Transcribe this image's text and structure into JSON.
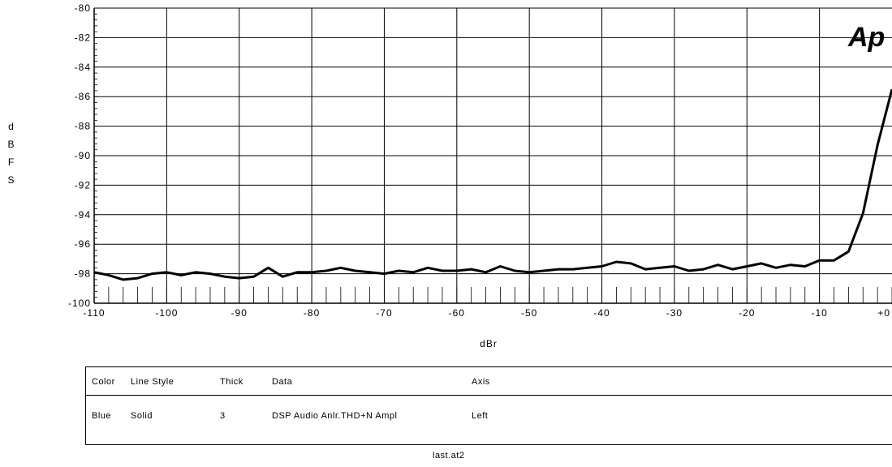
{
  "chart_data": {
    "type": "line",
    "xlabel": "dBr",
    "ylabel": "dBFS",
    "xlim": [
      -110,
      0
    ],
    "ylim": [
      -100,
      -80
    ],
    "x_ticks": [
      -110,
      -100,
      -90,
      -80,
      -70,
      -60,
      -50,
      -40,
      -30,
      -20,
      -10,
      0
    ],
    "x_tick_labels": [
      "-110",
      "-100",
      "-90",
      "-80",
      "-70",
      "-60",
      "-50",
      "-40",
      "-30",
      "-20",
      "-10",
      "+0"
    ],
    "y_ticks": [
      -80,
      -82,
      -84,
      -86,
      -88,
      -90,
      -92,
      -94,
      -96,
      -98,
      -100
    ],
    "y_tick_labels": [
      "-80",
      "-82",
      "-84",
      "-86",
      "-88",
      "-90",
      "-92",
      "-94",
      "-96",
      "-98",
      "-100"
    ],
    "grid": true,
    "series": [
      {
        "name": "DSP Audio Anlr.THD+N Ampl",
        "color": "#000000",
        "x": [
          -110,
          -108,
          -106,
          -104,
          -102,
          -100,
          -98,
          -96,
          -94,
          -92,
          -90,
          -88,
          -86,
          -84,
          -82,
          -80,
          -78,
          -76,
          -74,
          -72,
          -70,
          -68,
          -66,
          -64,
          -62,
          -60,
          -58,
          -56,
          -54,
          -52,
          -50,
          -48,
          -46,
          -44,
          -42,
          -40,
          -38,
          -36,
          -34,
          -32,
          -30,
          -28,
          -26,
          -24,
          -22,
          -20,
          -18,
          -16,
          -14,
          -12,
          -10,
          -8,
          -6,
          -4,
          -2,
          0
        ],
        "values": [
          -97.9,
          -98.1,
          -98.4,
          -98.3,
          -98.0,
          -97.9,
          -98.1,
          -97.9,
          -98.0,
          -98.2,
          -98.3,
          -98.2,
          -97.6,
          -98.2,
          -97.9,
          -97.9,
          -97.8,
          -97.6,
          -97.8,
          -97.9,
          -98.0,
          -97.8,
          -97.9,
          -97.6,
          -97.8,
          -97.8,
          -97.7,
          -97.9,
          -97.5,
          -97.8,
          -97.9,
          -97.8,
          -97.7,
          -97.7,
          -97.6,
          -97.5,
          -97.2,
          -97.3,
          -97.7,
          -97.6,
          -97.5,
          -97.8,
          -97.7,
          -97.4,
          -97.7,
          -97.5,
          -97.3,
          -97.6,
          -97.4,
          -97.5,
          -97.1,
          -97.1,
          -96.5,
          -93.9,
          -89.3,
          -85.5
        ]
      }
    ]
  },
  "logo_text": "Ap",
  "legend": {
    "headers": {
      "color": "Color",
      "line_style": "Line Style",
      "thick": "Thick",
      "data": "Data",
      "axis": "Axis"
    },
    "entries": [
      {
        "color": "Blue",
        "line_style": "Solid",
        "thick": "3",
        "data": "DSP Audio Anlr.THD+N Ampl",
        "axis": "Left"
      }
    ]
  },
  "filename": "last.at2"
}
